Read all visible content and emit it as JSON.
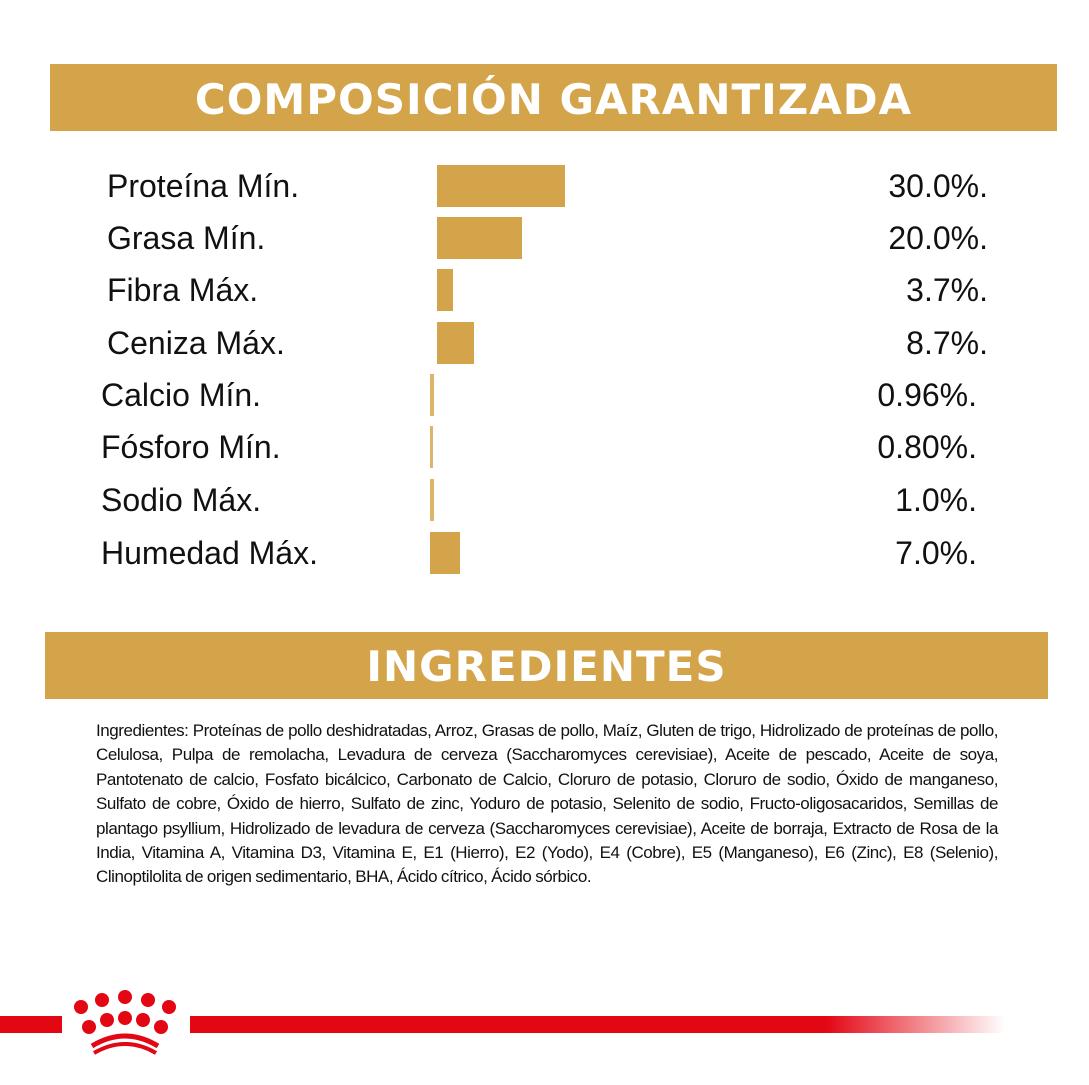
{
  "composition": {
    "title": "COMPOSICIÓN GARANTIZADA"
  },
  "ingredients": {
    "title": "INGREDIENTES",
    "text": "Ingredientes: Proteínas de pollo deshidratadas, Arroz, Grasas  de pollo, Maíz, Gluten de trigo, Hidrolizado de proteínas de pollo, Celulosa, Pulpa de remolacha, Levadura de cerveza (Saccharomyces cerevisiae), Aceite de pescado, Aceite de soya, Pantotenato de calcio, Fosfato bicálcico, Carbonato de Calcio, Cloruro de potasio, Cloruro de sodio, Óxido de manganeso, Sulfato de cobre, Óxido de hierro, Sulfato de zinc, Yoduro de potasio, Selenito de sodio, Fructo-oligosacaridos, Semillas de plantago psyllium, Hidrolizado de levadura de cerveza (Saccharomyces cerevisiae), Aceite de borraja, Extracto de Rosa de la India, Vitamina A, Vitamina D3, Vitamina E, E1 (Hierro), E2 (Yodo), E4 (Cobre), E5 (Manganeso), E6 (Zinc), E8 (Selenio), Clinoptilolita de origen sedimentario, BHA, Ácido cítrico, Ácido sórbico."
  },
  "logo": {
    "icon": "royal-canin-crown-icon",
    "color": "#e30613"
  },
  "chart_data": {
    "type": "bar",
    "orientation": "horizontal",
    "title": "COMPOSICIÓN GARANTIZADA",
    "categories": [
      "Proteína Mín.",
      "Grasa Mín.",
      "Fibra Máx.",
      "Ceniza Máx.",
      "Calcio Mín.",
      "Fósforo Mín.",
      "Sodio Máx.",
      "Humedad Máx."
    ],
    "values": [
      30.0,
      20.0,
      3.7,
      8.7,
      0.96,
      0.8,
      1.0,
      7.0
    ],
    "value_labels": [
      "30.0%.",
      "20.0%.",
      "3.7%.",
      "8.7%.",
      "0.96%.",
      "0.80%.",
      "1.0%.",
      "7.0%."
    ],
    "unit": "%",
    "bar_color": "#d3a44a",
    "grid": false
  }
}
